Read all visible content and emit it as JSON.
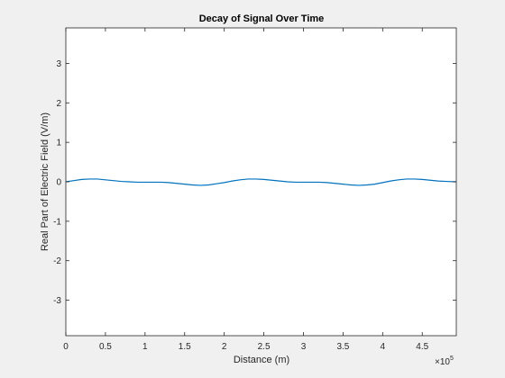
{
  "chart_data": {
    "type": "line",
    "title": "Decay of Signal Over Time",
    "xlabel": "Distance (m)",
    "ylabel": "Real Part of Electric Field (V/m)",
    "x_exponent_label": "×10",
    "x_exponent_power": "5",
    "xlim": [
      0,
      4.93
    ],
    "ylim": [
      -3.9,
      3.9
    ],
    "x_ticks": [
      0,
      0.5,
      1,
      1.5,
      2,
      2.5,
      3,
      3.5,
      4,
      4.5
    ],
    "x_tick_labels": [
      "0",
      "0.5",
      "1",
      "1.5",
      "2",
      "2.5",
      "3",
      "3.5",
      "4",
      "4.5"
    ],
    "y_ticks": [
      -3,
      -2,
      -1,
      0,
      1,
      2,
      3
    ],
    "y_tick_labels": [
      "-3",
      "-2",
      "-1",
      "0",
      "1",
      "2",
      "3"
    ],
    "grid": false,
    "series": [
      {
        "color": "#0072bd",
        "x": [
          0,
          0.1,
          0.2,
          0.3,
          0.4,
          0.5,
          0.6,
          0.7,
          0.8,
          0.9,
          1.0,
          1.1,
          1.2,
          1.3,
          1.4,
          1.5,
          1.6,
          1.7,
          1.8,
          1.9,
          2.0,
          2.1,
          2.2,
          2.3,
          2.4,
          2.5,
          2.6,
          2.7,
          2.8,
          2.9,
          3.0,
          3.1,
          3.2,
          3.3,
          3.4,
          3.5,
          3.6,
          3.7,
          3.8,
          3.9,
          4.0,
          4.1,
          4.2,
          4.3,
          4.4,
          4.5,
          4.6,
          4.7,
          4.8,
          4.93
        ],
        "y": [
          0.0,
          0.03,
          0.06,
          0.07,
          0.07,
          0.05,
          0.03,
          0.01,
          0.0,
          -0.01,
          -0.01,
          -0.01,
          -0.01,
          -0.02,
          -0.04,
          -0.06,
          -0.08,
          -0.09,
          -0.08,
          -0.05,
          -0.02,
          0.02,
          0.05,
          0.07,
          0.07,
          0.06,
          0.04,
          0.02,
          0.0,
          -0.01,
          -0.01,
          -0.01,
          -0.01,
          -0.02,
          -0.04,
          -0.06,
          -0.08,
          -0.09,
          -0.08,
          -0.06,
          -0.02,
          0.02,
          0.05,
          0.07,
          0.07,
          0.06,
          0.04,
          0.02,
          0.01,
          0.0
        ]
      }
    ]
  }
}
